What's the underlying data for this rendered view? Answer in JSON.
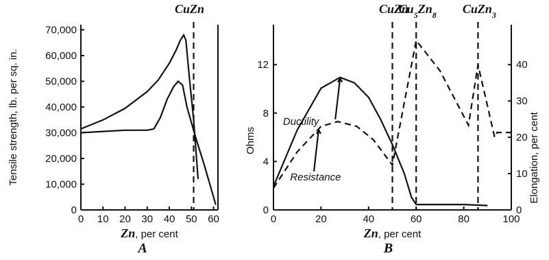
{
  "chart_data": [
    {
      "panel_letter": "A",
      "type": "line",
      "ylabel": "Tensile strength, lb. per sq. in.",
      "xlabel_bold": "Zn",
      "xlabel_rest": ", per cent",
      "xlim": [
        0,
        62
      ],
      "ylim": [
        0,
        72000
      ],
      "x_ticks": [
        "0",
        "10",
        "20",
        "30",
        "40",
        "50",
        "60"
      ],
      "y_ticks": [
        "0",
        "10,000",
        "20,000",
        "30,000",
        "40,000",
        "50,000",
        "60,000",
        "70,000"
      ],
      "y_tick_values": [
        0,
        10000,
        20000,
        30000,
        40000,
        50000,
        60000,
        70000
      ],
      "phase_label": "CuZn",
      "phase_x": 51,
      "series": [
        {
          "style": "solid",
          "points": [
            [
              0,
              31500
            ],
            [
              10,
              35000
            ],
            [
              20,
              39500
            ],
            [
              30,
              46000
            ],
            [
              35,
              50500
            ],
            [
              40,
              57000
            ],
            [
              43,
              62000
            ],
            [
              45,
              66000
            ],
            [
              46.5,
              68000
            ],
            [
              47.5,
              66000
            ],
            [
              49,
              52000
            ],
            [
              51,
              35000
            ],
            [
              53,
              12000
            ]
          ]
        },
        {
          "style": "solid",
          "points": [
            [
              0,
              30000
            ],
            [
              10,
              30500
            ],
            [
              20,
              31000
            ],
            [
              30,
              31000
            ],
            [
              33,
              31500
            ],
            [
              36,
              36000
            ],
            [
              39,
              43000
            ],
            [
              42,
              48000
            ],
            [
              44,
              50000
            ],
            [
              46,
              48500
            ],
            [
              48,
              40000
            ],
            [
              52,
              28000
            ],
            [
              56,
              17000
            ],
            [
              61,
              2000
            ]
          ]
        }
      ]
    },
    {
      "panel_letter": "B",
      "type": "line",
      "ylabel_left": "Ohms",
      "ylabel_right": "Elongation, per cent",
      "xlabel_bold": "Zn",
      "xlabel_rest": ", per cent",
      "xlim": [
        0,
        100
      ],
      "ylim_left": [
        0,
        15.3
      ],
      "ylim_right": [
        0,
        51
      ],
      "x_ticks": [
        "0",
        "20",
        "40",
        "60",
        "80",
        "100"
      ],
      "y_ticks_left": [
        "0",
        "4",
        "8",
        "12"
      ],
      "y_ticks_right": [
        "0",
        "10",
        "20",
        "30",
        "40"
      ],
      "phases": [
        {
          "label": "CuZn",
          "x": 50
        },
        {
          "label": "Cu5Zn8",
          "x": 60
        },
        {
          "label": "CuZn3",
          "x": 86
        }
      ],
      "annotations": {
        "ductility": "Ductility",
        "resistance": "Resistance"
      },
      "series": [
        {
          "name": "Ductility",
          "axis": "right",
          "style": "solid",
          "points": [
            [
              0,
              6.5
            ],
            [
              10,
              22
            ],
            [
              20,
              33.5
            ],
            [
              28,
              36.5
            ],
            [
              34,
              35
            ],
            [
              40,
              31
            ],
            [
              45,
              25
            ],
            [
              50,
              18
            ],
            [
              55,
              10
            ],
            [
              58,
              3.5
            ],
            [
              60,
              1.5
            ],
            [
              70,
              1.5
            ],
            [
              80,
              1.5
            ],
            [
              90,
              1.2
            ]
          ]
        },
        {
          "name": "Resistance",
          "axis": "left",
          "style": "dashed",
          "points": [
            [
              0,
              1.8
            ],
            [
              10,
              4.8
            ],
            [
              20,
              6.9
            ],
            [
              27,
              7.3
            ],
            [
              35,
              6.9
            ],
            [
              42,
              5.8
            ],
            [
              50,
              3.7
            ],
            [
              60,
              14
            ],
            [
              70,
              11.5
            ],
            [
              82,
              7
            ],
            [
              86,
              12
            ],
            [
              93,
              6
            ],
            [
              94,
              6.4
            ],
            [
              100,
              6.4
            ]
          ]
        }
      ]
    }
  ]
}
